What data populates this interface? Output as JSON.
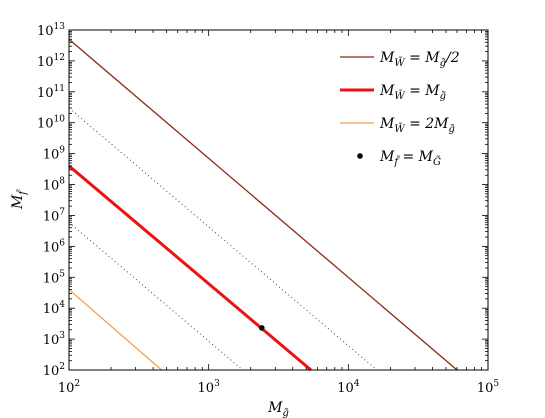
{
  "chart_data": {
    "type": "line",
    "xscale": "log",
    "yscale": "log",
    "xlim": [
      100,
      100000
    ],
    "ylim": [
      100,
      10000000000000
    ],
    "x_ticks": [
      {
        "value": 100,
        "base": "10",
        "exp": "2"
      },
      {
        "value": 1000,
        "base": "10",
        "exp": "3"
      },
      {
        "value": 10000,
        "base": "10",
        "exp": "4"
      },
      {
        "value": 100000,
        "base": "10",
        "exp": "5"
      }
    ],
    "y_ticks": [
      {
        "value": 100,
        "base": "10",
        "exp": "2"
      },
      {
        "value": 1000,
        "base": "10",
        "exp": "3"
      },
      {
        "value": 10000,
        "base": "10",
        "exp": "4"
      },
      {
        "value": 100000,
        "base": "10",
        "exp": "5"
      },
      {
        "value": 1000000,
        "base": "10",
        "exp": "6"
      },
      {
        "value": 10000000,
        "base": "10",
        "exp": "7"
      },
      {
        "value": 100000000,
        "base": "10",
        "exp": "8"
      },
      {
        "value": 1000000000,
        "base": "10",
        "exp": "9"
      },
      {
        "value": 10000000000,
        "base": "10",
        "exp": "10"
      },
      {
        "value": 100000000000,
        "base": "10",
        "exp": "11"
      },
      {
        "value": 1000000000000,
        "base": "10",
        "exp": "12"
      },
      {
        "value": 10000000000000,
        "base": "10",
        "exp": "13"
      }
    ],
    "xlabel": {
      "main": "M",
      "sub": "g̃"
    },
    "ylabel": {
      "main": "M",
      "sub": "f̃"
    },
    "grid": false,
    "legend_position": "top-right",
    "legend": [
      {
        "parts": [
          {
            "t": "M"
          },
          {
            "t": "W̃",
            "sub": true
          },
          {
            "t": " = M"
          },
          {
            "t": "g̃",
            "sub": true
          },
          {
            "t": "/2"
          }
        ],
        "color": "#8b2a14",
        "width": 1.3,
        "marker": false
      },
      {
        "parts": [
          {
            "t": "M"
          },
          {
            "t": "W̃",
            "sub": true
          },
          {
            "t": " = M"
          },
          {
            "t": "g̃",
            "sub": true
          }
        ],
        "color": "#ee1111",
        "width": 3,
        "marker": false
      },
      {
        "parts": [
          {
            "t": "M"
          },
          {
            "t": "W̃",
            "sub": true
          },
          {
            "t": " = 2M"
          },
          {
            "t": "g̃",
            "sub": true
          }
        ],
        "color": "#f2a04c",
        "width": 1.3,
        "marker": false
      },
      {
        "parts": [
          {
            "t": "M"
          },
          {
            "t": "f̃",
            "sub": true
          },
          {
            "t": " = M"
          },
          {
            "t": "G̃",
            "sub": true
          }
        ],
        "color": "#000000",
        "width": 0,
        "marker": true
      }
    ],
    "series": [
      {
        "style": "solid",
        "color": "#8b2a14",
        "width": 1.3,
        "x": [
          100,
          60000
        ],
        "y": [
          5000000000000,
          100
        ]
      },
      {
        "style": "solid",
        "color": "#ee1111",
        "width": 3,
        "x": [
          100,
          5400
        ],
        "y": [
          400000000,
          100
        ]
      },
      {
        "style": "solid",
        "color": "#f2a04c",
        "width": 1.3,
        "x": [
          100,
          460
        ],
        "y": [
          40000,
          100
        ]
      },
      {
        "style": "dotted",
        "color": "#444444",
        "width": 1,
        "x": [
          100,
          16000
        ],
        "y": [
          30000000000,
          100
        ]
      },
      {
        "style": "dotted",
        "color": "#444444",
        "width": 1,
        "x": [
          100,
          1750
        ],
        "y": [
          6000000,
          100
        ]
      }
    ],
    "points": [
      {
        "x": 2400,
        "y": 2300,
        "color": "#000000"
      }
    ]
  }
}
